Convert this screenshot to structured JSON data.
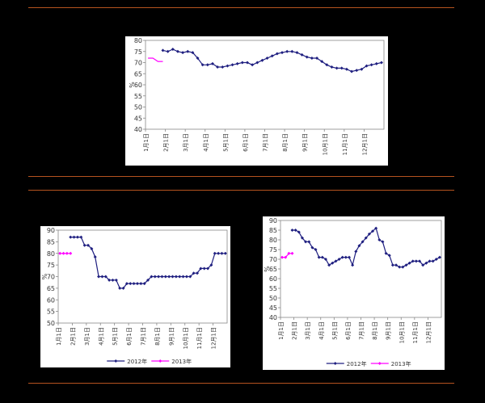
{
  "colors": {
    "background": "#000000",
    "rule": "#b5531f",
    "series_2012": "#1f1f80",
    "series_2013": "#ff00ff"
  },
  "chart_data": [
    {
      "type": "line",
      "ylabel": "%",
      "ylim": [
        40,
        80
      ],
      "yticks": [
        40,
        45,
        50,
        55,
        60,
        65,
        70,
        75,
        80
      ],
      "xticks": [
        "1月1日",
        "2月1日",
        "3月1日",
        "4月1日",
        "5月1日",
        "6月1日",
        "7月1日",
        "8月1日",
        "9月1日",
        "10月1日",
        "11月1日",
        "12月1日"
      ],
      "xmax": 48,
      "grid": false,
      "legend": "none",
      "series": [
        {
          "color": "#1f1f80",
          "marker": "diamond",
          "x": [
            3.5,
            4.5,
            5.5,
            6.5,
            7.5,
            8.5,
            9.5,
            10.5,
            11.5,
            12.5,
            13.5,
            14.5,
            15.5,
            16.5,
            17.5,
            18.5,
            19.5,
            20.5,
            21.5,
            22.5,
            23.5,
            24.5,
            25.5,
            26.5,
            27.5,
            28.5,
            29.5,
            30.5,
            31.5,
            32.5,
            33.5,
            34.5,
            35.5,
            36.5,
            37.5,
            38.5,
            39.5,
            40.5,
            41.5,
            42.5,
            43.5,
            44.5,
            45.5,
            46.5,
            47.5
          ],
          "y": [
            75.5,
            75,
            76,
            75,
            74.5,
            75,
            74.5,
            72,
            69,
            69,
            69.5,
            68,
            68,
            68.5,
            69,
            69.5,
            70,
            70,
            69,
            70,
            71,
            72,
            73,
            74,
            74.5,
            75,
            75,
            74.5,
            73.5,
            72.5,
            72,
            72,
            70.5,
            69,
            68,
            67.5,
            67.5,
            67,
            66,
            66.5,
            67,
            68.5,
            69,
            69.5,
            70
          ]
        },
        {
          "color": "#ff00ff",
          "marker": "none",
          "x": [
            0.5,
            1.5,
            2.5,
            3.5
          ],
          "y": [
            72,
            72,
            70.5,
            70.5
          ]
        }
      ]
    },
    {
      "type": "line",
      "ylabel": "%",
      "ylim": [
        50,
        90
      ],
      "yticks": [
        50,
        55,
        60,
        65,
        70,
        75,
        80,
        85,
        90
      ],
      "xticks": [
        "1月1日",
        "2月1日",
        "3月1日",
        "4月1日",
        "5月1日",
        "6月1日",
        "7月1日",
        "8月1日",
        "9月1日",
        "10月1日",
        "11月1日",
        "12月1日"
      ],
      "xmax": 48,
      "grid": false,
      "legend": "bottom",
      "series": [
        {
          "name": "2012年",
          "color": "#1f1f80",
          "marker": "diamond",
          "x": [
            3.5,
            4.5,
            5.5,
            6.5,
            7.5,
            8.5,
            9.5,
            10.5,
            11.5,
            12.5,
            13.5,
            14.5,
            15.5,
            16.5,
            17.5,
            18.5,
            19.5,
            20.5,
            21.5,
            22.5,
            23.5,
            24.5,
            25.5,
            26.5,
            27.5,
            28.5,
            29.5,
            30.5,
            31.5,
            32.5,
            33.5,
            34.5,
            35.5,
            36.5,
            37.5,
            38.5,
            39.5,
            40.5,
            41.5,
            42.5,
            43.5,
            44.5,
            45.5,
            46.5,
            47.5
          ],
          "y": [
            87,
            87,
            87,
            87,
            83.5,
            83.5,
            82,
            78.5,
            70,
            70,
            70,
            68.5,
            68.5,
            68.5,
            65,
            65,
            67,
            67,
            67,
            67,
            67,
            67,
            68.5,
            70,
            70,
            70,
            70,
            70,
            70,
            70,
            70,
            70,
            70,
            70,
            70,
            71.5,
            71.5,
            73.5,
            73.5,
            73.5,
            75,
            80,
            80,
            80,
            80
          ]
        },
        {
          "name": "2013年",
          "color": "#ff00ff",
          "marker": "diamond",
          "x": [
            0.5,
            1.5,
            2.5,
            3.5
          ],
          "y": [
            80,
            80,
            80,
            80
          ]
        }
      ]
    },
    {
      "type": "line",
      "ylabel": "%",
      "ylim": [
        40,
        90
      ],
      "yticks": [
        40,
        45,
        50,
        55,
        60,
        65,
        70,
        75,
        80,
        85,
        90
      ],
      "xticks": [
        "1月1日",
        "2月1日",
        "3月1日",
        "4月1日",
        "5月1日",
        "6月1日",
        "7月1日",
        "8月1日",
        "9月1日",
        "10月1日",
        "11月1日",
        "12月1日"
      ],
      "xmax": 48,
      "grid": false,
      "legend": "bottom",
      "series": [
        {
          "name": "2012年",
          "color": "#1f1f80",
          "marker": "diamond",
          "x": [
            3.5,
            4.5,
            5.5,
            6.5,
            7.5,
            8.5,
            9.5,
            10.5,
            11.5,
            12.5,
            13.5,
            14.5,
            15.5,
            16.5,
            17.5,
            18.5,
            19.5,
            20.5,
            21.5,
            22.5,
            23.5,
            24.5,
            25.5,
            26.5,
            27.5,
            28.5,
            29.5,
            30.5,
            31.5,
            32.5,
            33.5,
            34.5,
            35.5,
            36.5,
            37.5,
            38.5,
            39.5,
            40.5,
            41.5,
            42.5,
            43.5,
            44.5,
            45.5,
            46.5,
            47.5
          ],
          "y": [
            85,
            85,
            84,
            81,
            79,
            79,
            76,
            75,
            71,
            71,
            70,
            67,
            68,
            69,
            70,
            71,
            71,
            71,
            67,
            74,
            77,
            79,
            81,
            83,
            84.5,
            86,
            80,
            79,
            73,
            72,
            67,
            67,
            66,
            66,
            67,
            68,
            69,
            69,
            69,
            67,
            68,
            69,
            69,
            70,
            71
          ]
        },
        {
          "name": "2013年",
          "color": "#ff00ff",
          "marker": "diamond",
          "x": [
            0.5,
            1.5,
            2.5,
            3.5
          ],
          "y": [
            71,
            71,
            73,
            73
          ]
        }
      ]
    }
  ]
}
